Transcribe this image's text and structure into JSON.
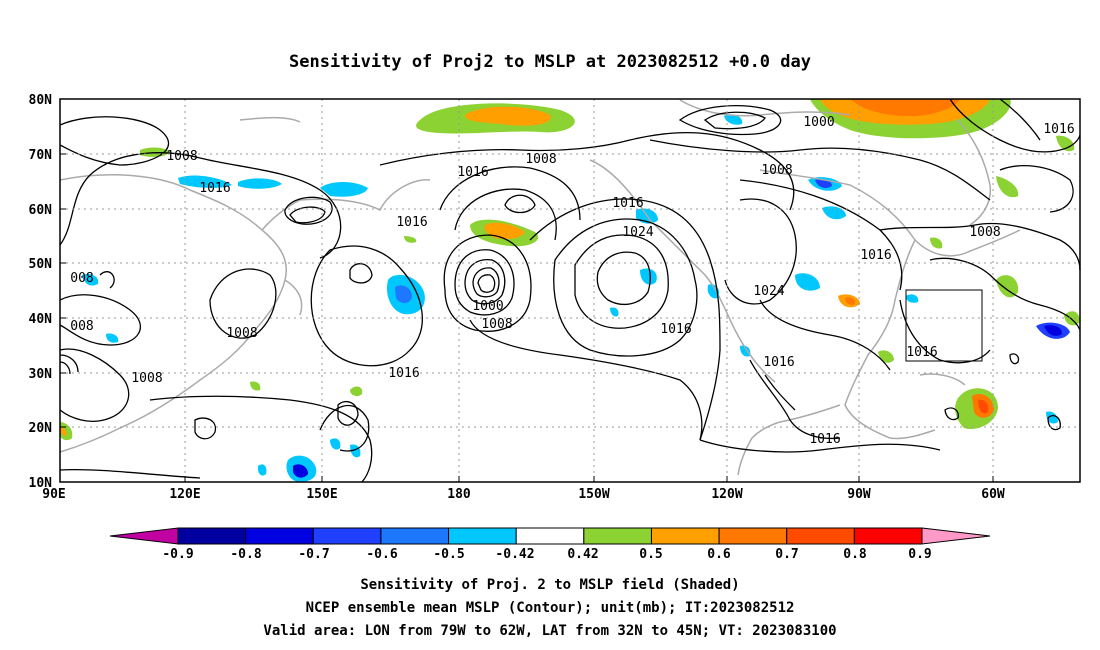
{
  "title": "Sensitivity of Proj2 to MSLP at 2023082512 +0.0 day",
  "axes": {
    "lat_ticks": [
      "80N",
      "70N",
      "60N",
      "50N",
      "40N",
      "30N",
      "20N",
      "10N"
    ],
    "lon_ticks": [
      "90E",
      "120E",
      "150E",
      "180",
      "150W",
      "120W",
      "90W",
      "60W"
    ]
  },
  "contour_labels": [
    "1008",
    "1016",
    "1008",
    "1016",
    "1016",
    "1000",
    "1008",
    "1016",
    "008",
    "008",
    "1008",
    "1016",
    "1024",
    "1016",
    "1000",
    "1008",
    "1016",
    "1024",
    "1016",
    "1016",
    "1016",
    "1008",
    "1008",
    "1016"
  ],
  "colorbar": {
    "labels": [
      "-0.9",
      "-0.8",
      "-0.7",
      "-0.6",
      "-0.5",
      "-0.42",
      "0.42",
      "0.5",
      "0.6",
      "0.7",
      "0.8",
      "0.9"
    ],
    "colors": [
      "#0000a0",
      "#0000e0",
      "#2040ff",
      "#1e78ff",
      "#00c8ff",
      "#ffffff",
      "#8cd232",
      "#ffa000",
      "#ff7800",
      "#ff4b00",
      "#ff0000"
    ],
    "end_low_color": "#c000a0",
    "end_high_color": "#ff9ac8"
  },
  "captions": [
    "Sensitivity of Proj. 2 to MSLP field (Shaded)",
    "NCEP ensemble mean MSLP (Contour); unit(mb); IT:2023082512",
    "Valid area: LON from 79W to 62W, LAT from 32N to 45N; VT: 2023083100"
  ],
  "valid_area": {
    "lon_min": -79,
    "lon_max": -62,
    "lat_min": 32,
    "lat_max": 45
  }
}
